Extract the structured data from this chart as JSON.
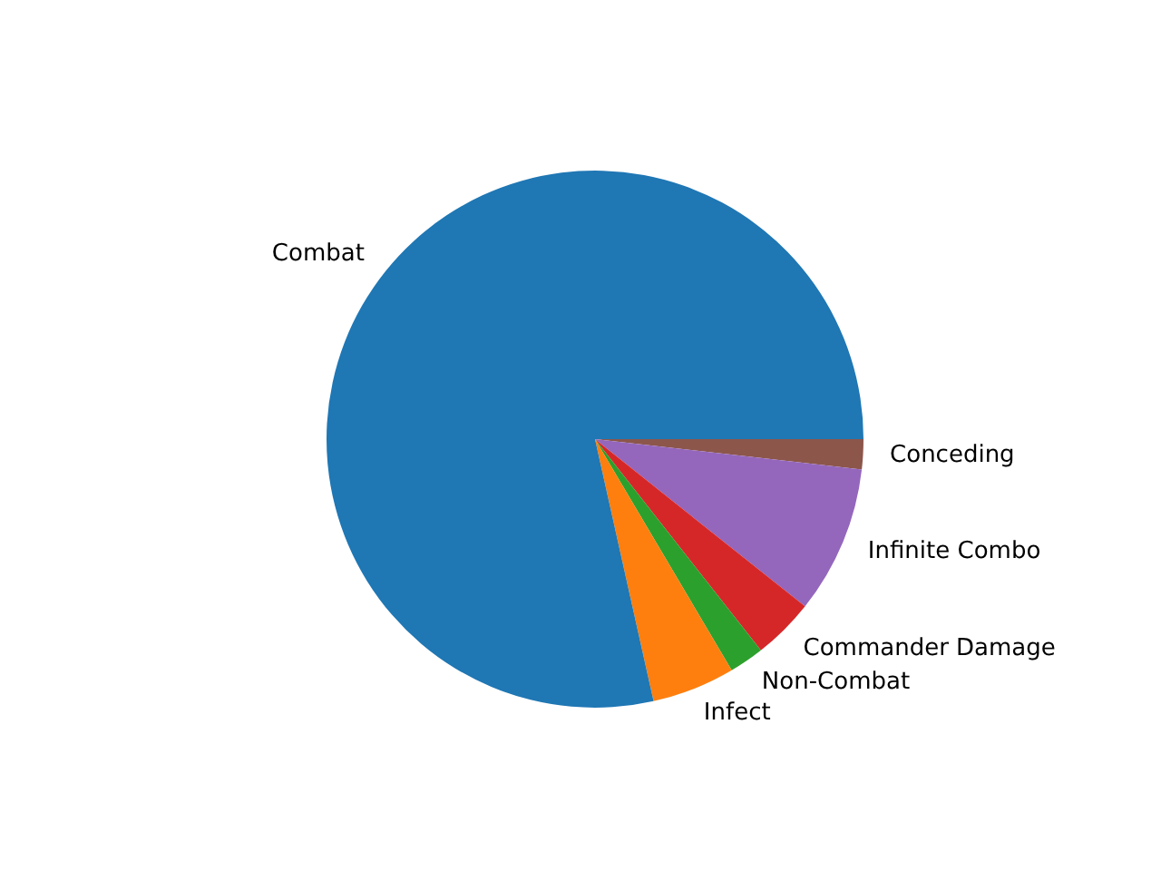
{
  "chart_data": {
    "type": "pie",
    "categories": [
      "Combat",
      "Infect",
      "Non-Combat",
      "Commander Damage",
      "Infinite Combo",
      "Conceding"
    ],
    "values": [
      78.5,
      5.0,
      2.1,
      3.7,
      8.9,
      1.8
    ],
    "colors": [
      "#1f77b4",
      "#ff7f0e",
      "#2ca02c",
      "#d62728",
      "#9467bd",
      "#8c564b"
    ],
    "legend": false
  }
}
